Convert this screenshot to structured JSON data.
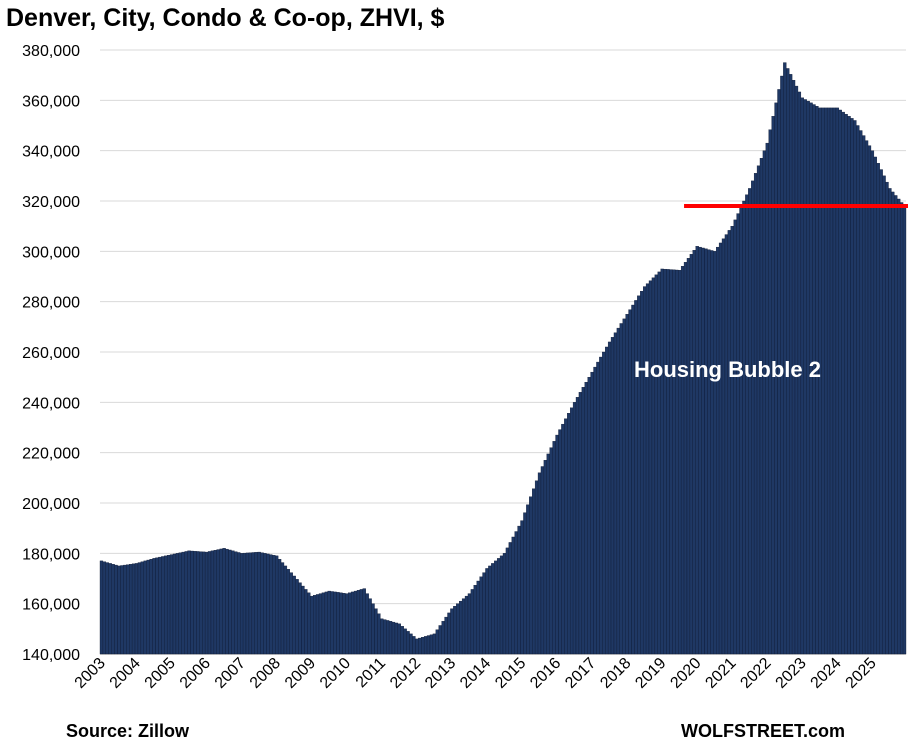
{
  "chart_data": {
    "type": "bar",
    "title": "Denver, City, Condo & Co-op, ZHVI, $",
    "x_start": "2003-01",
    "x_end": "2025-12",
    "frequency": "monthly",
    "x_tick_labels": [
      "2003",
      "2004",
      "2005",
      "2006",
      "2007",
      "2008",
      "2009",
      "2010",
      "2011",
      "2012",
      "2013",
      "2014",
      "2015",
      "2016",
      "2017",
      "2018",
      "2019",
      "2020",
      "2021",
      "2022",
      "2023",
      "2024",
      "2025"
    ],
    "y_tick_labels": [
      "140,000",
      "160,000",
      "180,000",
      "200,000",
      "220,000",
      "240,000",
      "260,000",
      "280,000",
      "300,000",
      "320,000",
      "340,000",
      "360,000",
      "380,000"
    ],
    "ylim": [
      140000,
      380000
    ],
    "grid": true,
    "bar_color": "#1f3864",
    "yearly_values": [
      176500,
      176000,
      179500,
      181000,
      180500,
      179000,
      165000,
      164000,
      160000,
      146000,
      152000,
      171000,
      185000,
      221000,
      252000,
      278000,
      293000,
      293000,
      302000,
      336000,
      366000,
      357000,
      350000
    ],
    "series": [
      {
        "name": "",
        "x": [
          "2003-01",
          "2003-07",
          "2004-01",
          "2004-07",
          "2005-01",
          "2005-07",
          "2006-01",
          "2006-07",
          "2007-01",
          "2007-07",
          "2008-01",
          "2008-07",
          "2009-01",
          "2009-07",
          "2010-01",
          "2010-07",
          "2011-01",
          "2011-07",
          "2012-01",
          "2012-07",
          "2013-01",
          "2013-07",
          "2014-01",
          "2014-07",
          "2015-01",
          "2015-07",
          "2016-01",
          "2016-07",
          "2017-01",
          "2017-07",
          "2018-01",
          "2018-07",
          "2019-01",
          "2019-07",
          "2020-01",
          "2020-07",
          "2021-01",
          "2021-07",
          "2022-01",
          "2022-07",
          "2023-01",
          "2023-07",
          "2024-01",
          "2024-07",
          "2025-01",
          "2025-07",
          "2025-12"
        ],
        "values": [
          177000,
          175000,
          176000,
          178000,
          179500,
          181000,
          180500,
          182000,
          180000,
          180500,
          179000,
          171000,
          163000,
          165000,
          164000,
          166000,
          154000,
          152000,
          146000,
          148000,
          158000,
          164000,
          174000,
          180000,
          193000,
          212000,
          227000,
          240000,
          252000,
          264000,
          275000,
          286000,
          293000,
          292500,
          302000,
          300000,
          310000,
          325000,
          343000,
          375000,
          361000,
          357000,
          357000,
          352000,
          340000,
          325000,
          318000
        ]
      }
    ],
    "reference_line": {
      "value": 318000,
      "from": "2019-09",
      "to": "2025-12",
      "color": "#ff0000"
    },
    "annotation": "Housing Bubble 2"
  },
  "source": "Source: Zillow",
  "brand": "WOLFSTREET.com"
}
